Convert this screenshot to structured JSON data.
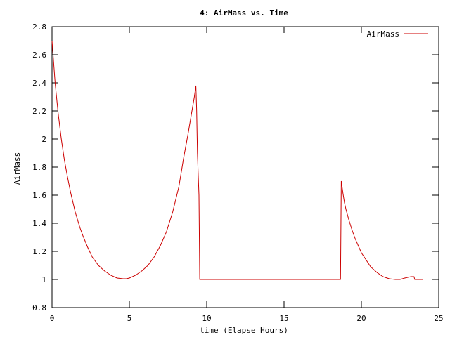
{
  "chart_data": {
    "type": "line",
    "title": "4: AirMass vs. Time",
    "xlabel": "time (Elapse Hours)",
    "ylabel": "AirMass",
    "xlim": [
      0,
      25
    ],
    "ylim": [
      0.8,
      2.8
    ],
    "xticks": [
      0,
      5,
      10,
      15,
      20,
      25
    ],
    "xtick_labels": [
      "0",
      "5",
      "10",
      "15",
      "20",
      "25"
    ],
    "yticks": [
      0.8,
      1,
      1.2,
      1.4,
      1.6,
      1.8,
      2,
      2.2,
      2.4,
      2.6,
      2.8
    ],
    "ytick_labels": [
      "0.8",
      "1",
      "1.2",
      "1.4",
      "1.6",
      "1.8",
      "2",
      "2.2",
      "2.4",
      "2.6",
      "2.8"
    ],
    "grid": false,
    "legend": "top-right",
    "series": [
      {
        "name": "AirMass",
        "color": "#cc0000",
        "x": [
          0.0,
          0.2,
          0.4,
          0.6,
          0.8,
          1.0,
          1.2,
          1.5,
          1.8,
          2.0,
          2.3,
          2.6,
          3.0,
          3.4,
          3.8,
          4.2,
          4.6,
          4.8,
          5.0,
          5.4,
          5.8,
          6.2,
          6.6,
          7.0,
          7.4,
          7.8,
          8.2,
          8.5,
          8.8,
          9.0,
          9.2,
          9.3,
          9.35,
          9.4,
          9.5,
          9.55,
          12.0,
          15.0,
          18.0,
          18.65,
          18.7,
          18.8,
          18.9,
          19.0,
          19.2,
          19.4,
          19.6,
          19.8,
          20.0,
          20.3,
          20.6,
          21.0,
          21.4,
          21.8,
          22.2,
          22.5,
          22.8,
          23.2,
          23.4,
          23.45,
          24.0
        ],
        "y": [
          2.7,
          2.4,
          2.18,
          2.0,
          1.85,
          1.73,
          1.62,
          1.48,
          1.37,
          1.31,
          1.23,
          1.16,
          1.1,
          1.06,
          1.03,
          1.01,
          1.005,
          1.005,
          1.01,
          1.03,
          1.06,
          1.1,
          1.16,
          1.24,
          1.34,
          1.48,
          1.66,
          1.86,
          2.04,
          2.17,
          2.3,
          2.38,
          2.2,
          1.9,
          1.6,
          1.0,
          1.0,
          1.0,
          1.0,
          1.0,
          1.7,
          1.62,
          1.55,
          1.5,
          1.42,
          1.35,
          1.29,
          1.24,
          1.19,
          1.14,
          1.09,
          1.05,
          1.02,
          1.005,
          1.0,
          1.0,
          1.01,
          1.02,
          1.02,
          1.0,
          1.0
        ]
      }
    ]
  }
}
